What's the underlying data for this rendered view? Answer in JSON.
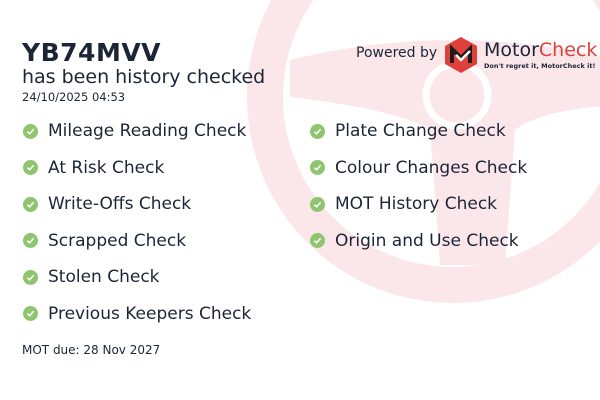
{
  "vehicle": {
    "registration": "YB74MVV",
    "status": "has been history checked",
    "timestamp": "24/10/2025 04:53"
  },
  "branding": {
    "powered_by": "Powered by",
    "brand_part1": "Motor",
    "brand_part2": "Check",
    "tagline": "Don't regret it, MotorCheck it!",
    "accent": "#e0403a"
  },
  "checks_left": [
    "Mileage Reading Check",
    "At Risk Check",
    "Write-Offs Check",
    "Scrapped Check",
    "Stolen Check",
    "Previous Keepers Check"
  ],
  "checks_right": [
    "Plate Change Check",
    "Colour Changes Check",
    "MOT History Check",
    "Origin and Use Check"
  ],
  "check_icon": "check-circle-icon",
  "check_color": "#8fc56e",
  "mot_due": "MOT due: 28 Nov 2027"
}
